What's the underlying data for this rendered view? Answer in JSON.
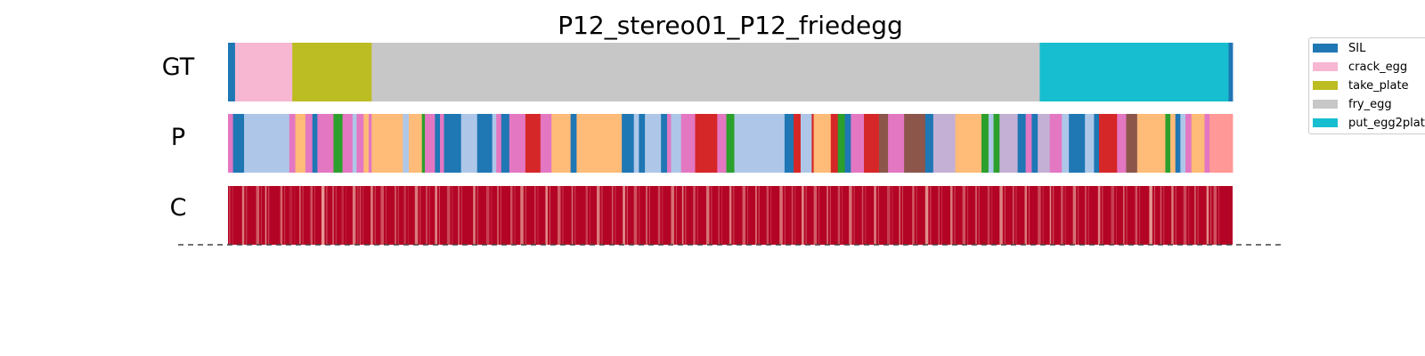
{
  "chart_data": {
    "type": "segmentation",
    "title": "P12_stereo01_P12_friedegg",
    "rows": [
      "GT",
      "P",
      "C"
    ],
    "legend": [
      {
        "label": "SIL",
        "color": "#1f77b4"
      },
      {
        "label": "crack_egg",
        "color": "#f7b6d2"
      },
      {
        "label": "take_plate",
        "color": "#bcbd22"
      },
      {
        "label": "fry_egg",
        "color": "#c7c7c7"
      },
      {
        "label": "put_egg2plate",
        "color": "#17becf"
      }
    ],
    "gt_segments": [
      {
        "label": "SIL",
        "start": 0.0,
        "end": 0.007
      },
      {
        "label": "crack_egg",
        "start": 0.007,
        "end": 0.064
      },
      {
        "label": "take_plate",
        "start": 0.064,
        "end": 0.143
      },
      {
        "label": "fry_egg",
        "start": 0.143,
        "end": 0.808
      },
      {
        "label": "put_egg2plate",
        "start": 0.808,
        "end": 0.996
      },
      {
        "label": "SIL",
        "start": 0.996,
        "end": 1.0
      }
    ],
    "prediction_colors": [
      {
        "color": "#e377c2",
        "start": 0.0,
        "end": 0.005
      },
      {
        "color": "#1f77b4",
        "start": 0.005,
        "end": 0.016
      },
      {
        "color": "#aec7e8",
        "start": 0.016,
        "end": 0.061
      },
      {
        "color": "#e377c2",
        "start": 0.061,
        "end": 0.067
      },
      {
        "color": "#ffbb78",
        "start": 0.067,
        "end": 0.077
      },
      {
        "color": "#e377c2",
        "start": 0.077,
        "end": 0.084
      },
      {
        "color": "#1f77b4",
        "start": 0.084,
        "end": 0.089
      },
      {
        "color": "#e377c2",
        "start": 0.089,
        "end": 0.105
      },
      {
        "color": "#2ca02c",
        "start": 0.105,
        "end": 0.114
      },
      {
        "color": "#e377c2",
        "start": 0.114,
        "end": 0.124
      },
      {
        "color": "#aec7e8",
        "start": 0.124,
        "end": 0.128
      },
      {
        "color": "#e377c2",
        "start": 0.128,
        "end": 0.135
      },
      {
        "color": "#ffbb78",
        "start": 0.135,
        "end": 0.14
      },
      {
        "color": "#e377c2",
        "start": 0.14,
        "end": 0.143
      },
      {
        "color": "#ffbb78",
        "start": 0.143,
        "end": 0.174
      },
      {
        "color": "#aec7e8",
        "start": 0.174,
        "end": 0.18
      },
      {
        "color": "#ffbb78",
        "start": 0.18,
        "end": 0.193
      },
      {
        "color": "#2ca02c",
        "start": 0.193,
        "end": 0.196
      },
      {
        "color": "#e377c2",
        "start": 0.196,
        "end": 0.206
      },
      {
        "color": "#1f77b4",
        "start": 0.206,
        "end": 0.211
      },
      {
        "color": "#e377c2",
        "start": 0.211,
        "end": 0.215
      },
      {
        "color": "#1f77b4",
        "start": 0.215,
        "end": 0.232
      },
      {
        "color": "#aec7e8",
        "start": 0.232,
        "end": 0.248
      },
      {
        "color": "#1f77b4",
        "start": 0.248,
        "end": 0.263
      },
      {
        "color": "#aec7e8",
        "start": 0.263,
        "end": 0.267
      },
      {
        "color": "#e377c2",
        "start": 0.267,
        "end": 0.272
      },
      {
        "color": "#1f77b4",
        "start": 0.272,
        "end": 0.28
      },
      {
        "color": "#e377c2",
        "start": 0.28,
        "end": 0.296
      },
      {
        "color": "#d62728",
        "start": 0.296,
        "end": 0.311
      },
      {
        "color": "#e377c2",
        "start": 0.311,
        "end": 0.322
      },
      {
        "color": "#ffbb78",
        "start": 0.322,
        "end": 0.341
      },
      {
        "color": "#1f77b4",
        "start": 0.341,
        "end": 0.347
      },
      {
        "color": "#ffbb78",
        "start": 0.347,
        "end": 0.392
      },
      {
        "color": "#1f77b4",
        "start": 0.392,
        "end": 0.404
      },
      {
        "color": "#aec7e8",
        "start": 0.404,
        "end": 0.409
      },
      {
        "color": "#1f77b4",
        "start": 0.409,
        "end": 0.415
      },
      {
        "color": "#aec7e8",
        "start": 0.415,
        "end": 0.431
      },
      {
        "color": "#1f77b4",
        "start": 0.431,
        "end": 0.437
      },
      {
        "color": "#e377c2",
        "start": 0.437,
        "end": 0.441
      },
      {
        "color": "#aec7e8",
        "start": 0.441,
        "end": 0.451
      },
      {
        "color": "#e377c2",
        "start": 0.451,
        "end": 0.465
      },
      {
        "color": "#d62728",
        "start": 0.465,
        "end": 0.487
      },
      {
        "color": "#e377c2",
        "start": 0.487,
        "end": 0.496
      },
      {
        "color": "#2ca02c",
        "start": 0.496,
        "end": 0.504
      },
      {
        "color": "#aec7e8",
        "start": 0.504,
        "end": 0.554
      },
      {
        "color": "#1f77b4",
        "start": 0.554,
        "end": 0.563
      },
      {
        "color": "#d62728",
        "start": 0.563,
        "end": 0.57
      },
      {
        "color": "#aec7e8",
        "start": 0.57,
        "end": 0.581
      },
      {
        "color": "#d62728",
        "start": 0.581,
        "end": 0.583
      },
      {
        "color": "#ffbb78",
        "start": 0.583,
        "end": 0.6
      },
      {
        "color": "#d62728",
        "start": 0.6,
        "end": 0.607
      },
      {
        "color": "#2ca02c",
        "start": 0.607,
        "end": 0.614
      },
      {
        "color": "#1f77b4",
        "start": 0.614,
        "end": 0.62
      },
      {
        "color": "#e377c2",
        "start": 0.62,
        "end": 0.633
      },
      {
        "color": "#d62728",
        "start": 0.633,
        "end": 0.648
      },
      {
        "color": "#8c564b",
        "start": 0.648,
        "end": 0.657
      },
      {
        "color": "#e377c2",
        "start": 0.657,
        "end": 0.673
      },
      {
        "color": "#8c564b",
        "start": 0.673,
        "end": 0.694
      },
      {
        "color": "#1f77b4",
        "start": 0.694,
        "end": 0.702
      },
      {
        "color": "#c5b0d5",
        "start": 0.702,
        "end": 0.724
      },
      {
        "color": "#ffbb78",
        "start": 0.724,
        "end": 0.75
      },
      {
        "color": "#2ca02c",
        "start": 0.75,
        "end": 0.757
      },
      {
        "color": "#aec7e8",
        "start": 0.757,
        "end": 0.762
      },
      {
        "color": "#2ca02c",
        "start": 0.762,
        "end": 0.768
      },
      {
        "color": "#c5b0d5",
        "start": 0.768,
        "end": 0.786
      },
      {
        "color": "#1f77b4",
        "start": 0.786,
        "end": 0.794
      },
      {
        "color": "#e377c2",
        "start": 0.794,
        "end": 0.8
      },
      {
        "color": "#1f77b4",
        "start": 0.8,
        "end": 0.806
      },
      {
        "color": "#c5b0d5",
        "start": 0.806,
        "end": 0.818
      },
      {
        "color": "#e377c2",
        "start": 0.818,
        "end": 0.83
      },
      {
        "color": "#aec7e8",
        "start": 0.83,
        "end": 0.837
      },
      {
        "color": "#1f77b4",
        "start": 0.837,
        "end": 0.853
      },
      {
        "color": "#aec7e8",
        "start": 0.853,
        "end": 0.862
      },
      {
        "color": "#1f77b4",
        "start": 0.862,
        "end": 0.867
      },
      {
        "color": "#d62728",
        "start": 0.867,
        "end": 0.885
      },
      {
        "color": "#e377c2",
        "start": 0.885,
        "end": 0.894
      },
      {
        "color": "#8c564b",
        "start": 0.894,
        "end": 0.905
      },
      {
        "color": "#ffbb78",
        "start": 0.905,
        "end": 0.933
      },
      {
        "color": "#2ca02c",
        "start": 0.933,
        "end": 0.938
      },
      {
        "color": "#ffbb78",
        "start": 0.938,
        "end": 0.943
      },
      {
        "color": "#1f77b4",
        "start": 0.943,
        "end": 0.948
      },
      {
        "color": "#aec7e8",
        "start": 0.948,
        "end": 0.953
      },
      {
        "color": "#e377c2",
        "start": 0.953,
        "end": 0.959
      },
      {
        "color": "#ffbb78",
        "start": 0.959,
        "end": 0.972
      },
      {
        "color": "#e377c2",
        "start": 0.972,
        "end": 0.977
      },
      {
        "color": "#ff9896",
        "start": 0.977,
        "end": 1.0
      }
    ],
    "confidence": {
      "base_color": "#b40426",
      "dips": [
        {
          "x": 0.001,
          "v": 0.3
        },
        {
          "x": 0.014,
          "v": 0.6
        },
        {
          "x": 0.028,
          "v": 0.45
        },
        {
          "x": 0.037,
          "v": 0.7
        },
        {
          "x": 0.052,
          "v": 0.5
        },
        {
          "x": 0.061,
          "v": 0.15
        },
        {
          "x": 0.071,
          "v": 0.55
        },
        {
          "x": 0.082,
          "v": 0.4
        },
        {
          "x": 0.093,
          "v": 0.75
        },
        {
          "x": 0.104,
          "v": 0.5
        },
        {
          "x": 0.113,
          "v": 0.2
        },
        {
          "x": 0.124,
          "v": 0.6
        },
        {
          "x": 0.131,
          "v": 0.35
        },
        {
          "x": 0.142,
          "v": 0.65
        },
        {
          "x": 0.152,
          "v": 0.4
        },
        {
          "x": 0.166,
          "v": 0.55
        },
        {
          "x": 0.175,
          "v": 0.25
        },
        {
          "x": 0.186,
          "v": 0.6
        },
        {
          "x": 0.197,
          "v": 0.45
        },
        {
          "x": 0.206,
          "v": 0.7
        },
        {
          "x": 0.218,
          "v": 0.35
        },
        {
          "x": 0.229,
          "v": 0.5
        },
        {
          "x": 0.244,
          "v": 0.65
        },
        {
          "x": 0.257,
          "v": 0.3
        },
        {
          "x": 0.268,
          "v": 0.55
        },
        {
          "x": 0.281,
          "v": 0.4
        },
        {
          "x": 0.291,
          "v": 0.6
        },
        {
          "x": 0.305,
          "v": 0.35
        },
        {
          "x": 0.316,
          "v": 0.7
        },
        {
          "x": 0.328,
          "v": 0.45
        },
        {
          "x": 0.342,
          "v": 0.55
        },
        {
          "x": 0.356,
          "v": 0.3
        },
        {
          "x": 0.367,
          "v": 0.6
        },
        {
          "x": 0.382,
          "v": 0.45
        },
        {
          "x": 0.393,
          "v": 0.75
        },
        {
          "x": 0.404,
          "v": 0.4
        },
        {
          "x": 0.416,
          "v": 0.6
        },
        {
          "x": 0.428,
          "v": 0.35
        },
        {
          "x": 0.441,
          "v": 0.55
        },
        {
          "x": 0.452,
          "v": 0.7
        },
        {
          "x": 0.463,
          "v": 0.4
        },
        {
          "x": 0.476,
          "v": 0.55
        },
        {
          "x": 0.488,
          "v": 0.3
        },
        {
          "x": 0.499,
          "v": 0.6
        },
        {
          "x": 0.512,
          "v": 0.45
        },
        {
          "x": 0.525,
          "v": 0.65
        },
        {
          "x": 0.536,
          "v": 0.35
        },
        {
          "x": 0.549,
          "v": 0.55
        },
        {
          "x": 0.561,
          "v": 0.4
        },
        {
          "x": 0.571,
          "v": 0.7
        },
        {
          "x": 0.583,
          "v": 0.45
        },
        {
          "x": 0.596,
          "v": 0.6
        },
        {
          "x": 0.607,
          "v": 0.35
        },
        {
          "x": 0.618,
          "v": 0.55
        },
        {
          "x": 0.631,
          "v": 0.4
        },
        {
          "x": 0.643,
          "v": 0.65
        },
        {
          "x": 0.656,
          "v": 0.3
        },
        {
          "x": 0.668,
          "v": 0.55
        },
        {
          "x": 0.681,
          "v": 0.45
        },
        {
          "x": 0.694,
          "v": 0.7
        },
        {
          "x": 0.707,
          "v": 0.35
        },
        {
          "x": 0.719,
          "v": 0.6
        },
        {
          "x": 0.731,
          "v": 0.4
        },
        {
          "x": 0.744,
          "v": 0.55
        },
        {
          "x": 0.756,
          "v": 0.3
        },
        {
          "x": 0.768,
          "v": 0.65
        },
        {
          "x": 0.781,
          "v": 0.45
        },
        {
          "x": 0.793,
          "v": 0.6
        },
        {
          "x": 0.806,
          "v": 0.35
        },
        {
          "x": 0.818,
          "v": 0.7
        },
        {
          "x": 0.829,
          "v": 0.4
        },
        {
          "x": 0.841,
          "v": 0.55
        },
        {
          "x": 0.853,
          "v": 0.45
        },
        {
          "x": 0.866,
          "v": 0.65
        },
        {
          "x": 0.879,
          "v": 0.3
        },
        {
          "x": 0.891,
          "v": 0.55
        },
        {
          "x": 0.903,
          "v": 0.4
        },
        {
          "x": 0.917,
          "v": 0.75
        },
        {
          "x": 0.928,
          "v": 0.45
        },
        {
          "x": 0.939,
          "v": 0.6
        },
        {
          "x": 0.951,
          "v": 0.35
        },
        {
          "x": 0.962,
          "v": 0.55
        },
        {
          "x": 0.974,
          "v": 0.7
        },
        {
          "x": 0.981,
          "v": 0.4
        }
      ]
    }
  }
}
